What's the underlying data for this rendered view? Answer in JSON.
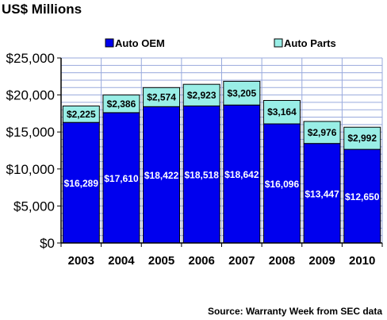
{
  "chart_data": {
    "type": "bar",
    "stacked": true,
    "title": "US$ Millions",
    "categories": [
      "2003",
      "2004",
      "2005",
      "2006",
      "2007",
      "2008",
      "2009",
      "2010"
    ],
    "series": [
      {
        "name": "Auto OEM",
        "color": "#0000ee",
        "values": [
          16289,
          17610,
          18422,
          18518,
          18642,
          16096,
          13447,
          12650
        ],
        "labels": [
          "$16,289",
          "$17,610",
          "$18,422",
          "$18,518",
          "$18,642",
          "$16,096",
          "$13,447",
          "$12,650"
        ]
      },
      {
        "name": "Auto Parts",
        "color": "#99eee6",
        "values": [
          2225,
          2386,
          2574,
          2923,
          3205,
          3164,
          2976,
          2992
        ],
        "labels": [
          "$2,225",
          "$2,386",
          "$2,574",
          "$2,923",
          "$3,205",
          "$3,164",
          "$2,976",
          "$2,992"
        ]
      }
    ],
    "ylim": [
      0,
      25000
    ],
    "yticks": [
      0,
      5000,
      10000,
      15000,
      20000,
      25000
    ],
    "ytick_labels": [
      "$0",
      "$5,000",
      "$10,000",
      "$15,000",
      "$20,000",
      "$25,000"
    ],
    "grid": true,
    "legend_position": "top",
    "source": "Source: Warranty Week from SEC data",
    "xlabel": "",
    "ylabel": "",
    "gridline_color": "#99aadd"
  }
}
